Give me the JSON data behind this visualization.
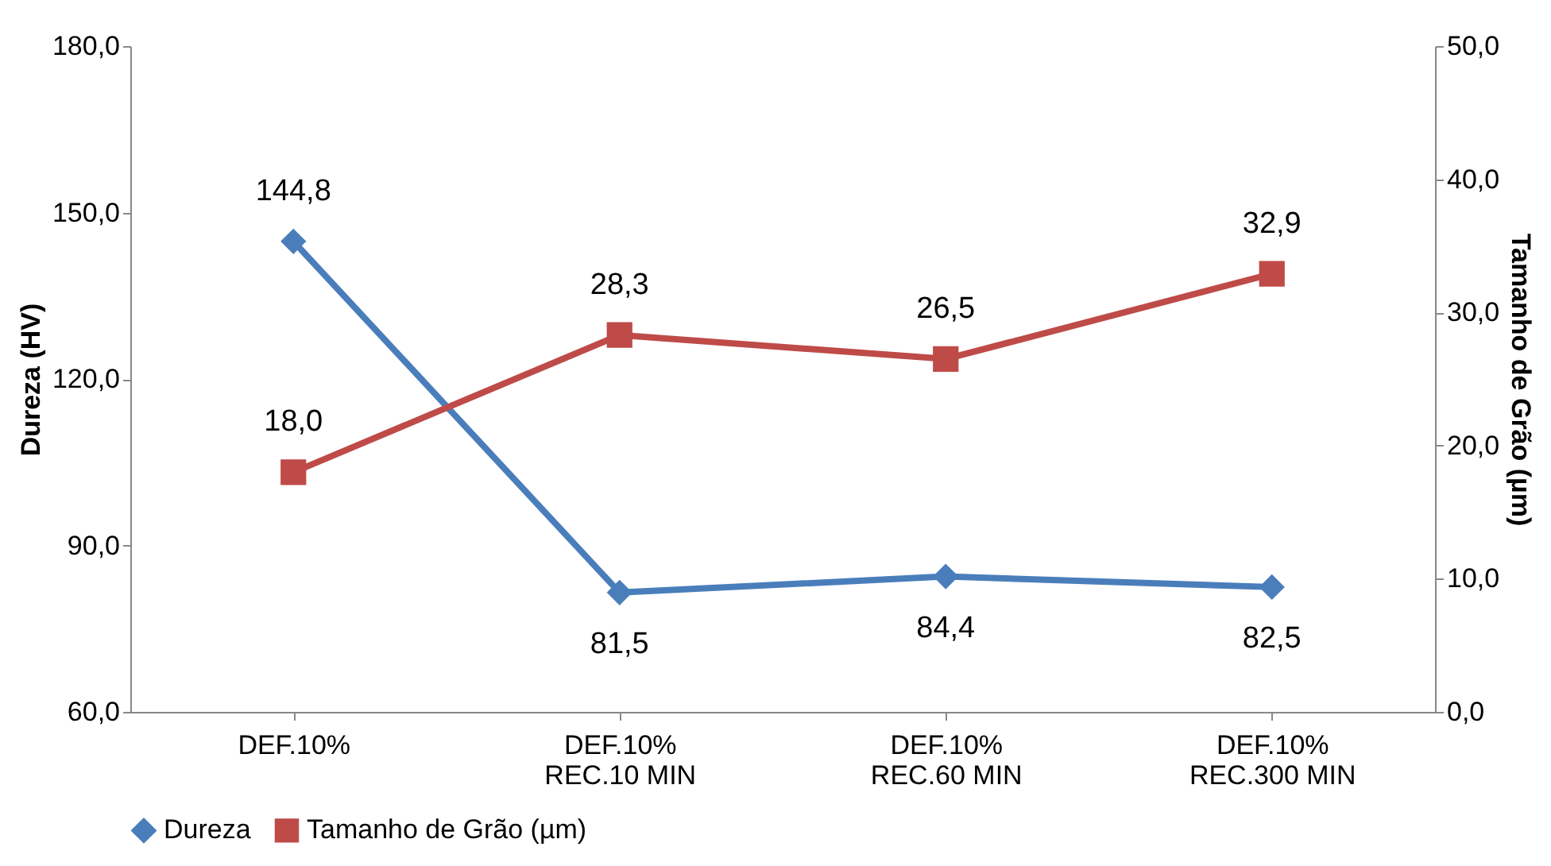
{
  "chart_data": {
    "type": "line",
    "categories": [
      "DEF.10%",
      "DEF.10%\nREC.10 MIN",
      "DEF.10%\nREC.60 MIN",
      "DEF.10%\nREC.300 MIN"
    ],
    "series": [
      {
        "name": "Dureza",
        "color": "#4a7ebb",
        "marker": "diamond",
        "values": [
          144.8,
          81.5,
          84.4,
          82.5
        ],
        "value_labels": [
          "144,8",
          "81,5",
          "84,4",
          "82,5"
        ]
      },
      {
        "name": "Tamanho de Grão (µm)",
        "color": "#be4b48",
        "marker": "square",
        "axis": "y2",
        "values": [
          18.0,
          28.3,
          26.5,
          32.9
        ],
        "value_labels": [
          "18,0",
          "28,3",
          "26,5",
          "32,9"
        ]
      }
    ],
    "ylabel": "Dureza (HV)",
    "y2label": "Tamanho de Grão (µm)",
    "ylim": [
      60,
      180
    ],
    "yticks": [
      {
        "value": 60,
        "label": "60,0"
      },
      {
        "value": 90,
        "label": "90,0"
      },
      {
        "value": 120,
        "label": "120,0"
      },
      {
        "value": 150,
        "label": "150,0"
      },
      {
        "value": 180,
        "label": "180,0"
      }
    ],
    "y2lim": [
      0,
      50
    ],
    "y2ticks": [
      {
        "value": 0,
        "label": "0,0"
      },
      {
        "value": 10,
        "label": "10,0"
      },
      {
        "value": 20,
        "label": "20,0"
      },
      {
        "value": 30,
        "label": "30,0"
      },
      {
        "value": 40,
        "label": "40,0"
      },
      {
        "value": 50,
        "label": "50,0"
      }
    ],
    "grid": false,
    "legend": "bottom",
    "line_style": "solid"
  }
}
